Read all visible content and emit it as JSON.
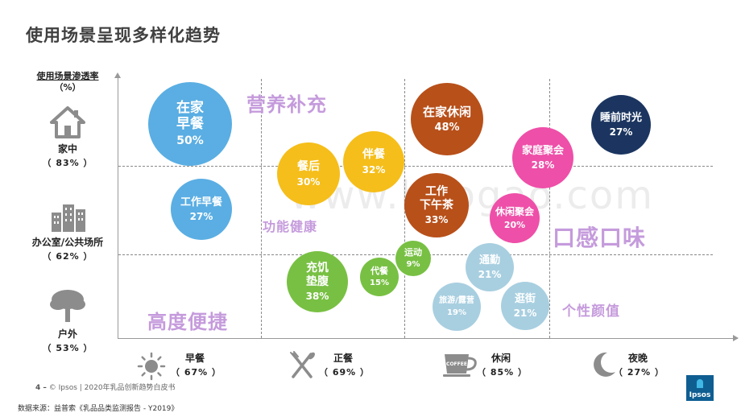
{
  "title": "使用场景呈现多样化趋势",
  "watermark": "www.baogao.com",
  "footer": {
    "page": "4 –",
    "text": "© Ipsos | 2020年乳品创新趋势白皮书"
  },
  "source": "数据来源：益普索《乳品品类监测报告 - Y2019》",
  "logo_text": "Ipsos",
  "chart_data": {
    "type": "bubble-matrix",
    "title": "使用场景呈现多样化趋势",
    "y_axis_title": "使用场景渗透率",
    "y_axis_unit": "（%）",
    "y_categories": [
      {
        "name": "家中",
        "pct": "（ 83% ）",
        "icon": "house-icon"
      },
      {
        "name": "办公室/公共场所",
        "pct": "（ 62% ）",
        "icon": "office-building-icon"
      },
      {
        "name": "户外",
        "pct": "（ 53% ）",
        "icon": "tree-icon"
      }
    ],
    "x_categories": [
      {
        "name": "早餐",
        "pct": "（ 67% ）",
        "icon": "sun-icon"
      },
      {
        "name": "正餐",
        "pct": "（ 69% ）",
        "icon": "fork-knife-icon"
      },
      {
        "name": "休闲",
        "pct": "（ 85% ）",
        "icon": "coffee-cup-icon"
      },
      {
        "name": "夜晚",
        "pct": "（ 27% ）",
        "icon": "moon-icon"
      }
    ],
    "bubbles": [
      {
        "label": "在家\n早餐",
        "value": 50,
        "value_label": "50%",
        "color": "#5aaee3"
      },
      {
        "label": "工作早餐",
        "value": 27,
        "value_label": "27%",
        "color": "#5aaee3"
      },
      {
        "label": "餐后",
        "value": 30,
        "value_label": "30%",
        "color": "#f5be1a"
      },
      {
        "label": "伴餐",
        "value": 32,
        "value_label": "32%",
        "color": "#f5be1a"
      },
      {
        "label": "充饥\n垫腹",
        "value": 38,
        "value_label": "38%",
        "color": "#78c043"
      },
      {
        "label": "代餐",
        "value": 15,
        "value_label": "15%",
        "color": "#78c043"
      },
      {
        "label": "运动",
        "value": 9,
        "value_label": "9%",
        "color": "#78c043"
      },
      {
        "label": "在家休闲",
        "value": 48,
        "value_label": "48%",
        "color": "#b8501a"
      },
      {
        "label": "工作\n下午茶",
        "value": 33,
        "value_label": "33%",
        "color": "#b8501a"
      },
      {
        "label": "家庭聚会",
        "value": 28,
        "value_label": "28%",
        "color": "#ee4fa8"
      },
      {
        "label": "休闲聚会",
        "value": 20,
        "value_label": "20%",
        "color": "#ee4fa8"
      },
      {
        "label": "睡前时光",
        "value": 27,
        "value_label": "27%",
        "color": "#1b3560"
      },
      {
        "label": "通勤",
        "value": 21,
        "value_label": "21%",
        "color": "#a8cfe0"
      },
      {
        "label": "旅游/露营",
        "value": 19,
        "value_label": "19%",
        "color": "#a8cfe0"
      },
      {
        "label": "逛街",
        "value": 21,
        "value_label": "21%",
        "color": "#a8cfe0"
      }
    ],
    "themes": [
      "营养补充",
      "功能健康",
      "高度便捷",
      "口感口味",
      "个性颜值"
    ]
  }
}
